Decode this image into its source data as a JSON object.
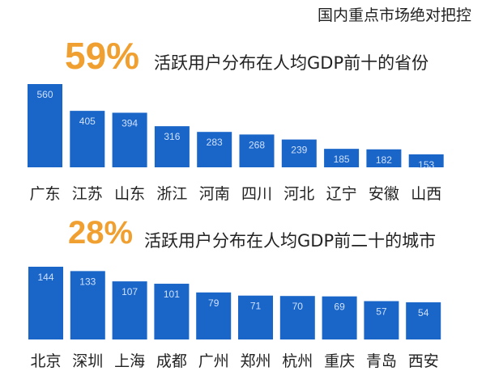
{
  "header": {
    "title": "国内重点市场绝对把控"
  },
  "chart_data": [
    {
      "type": "bar",
      "highlight": "59%",
      "title": "活跃用户分布在人均GDP前十的省份",
      "categories": [
        "广东",
        "江苏",
        "山东",
        "浙江",
        "河南",
        "四川",
        "河北",
        "辽宁",
        "安徽",
        "山西"
      ],
      "values": [
        560,
        405,
        394,
        316,
        283,
        268,
        239,
        185,
        182,
        153
      ],
      "ylim": [
        78,
        560
      ],
      "grid": false,
      "bar_color": "#1a66c8",
      "highlight_color": "#f0a030"
    },
    {
      "type": "bar",
      "highlight": "28%",
      "title": "活跃用户分布在人均GDP前二十的城市",
      "categories": [
        "北京",
        "深圳",
        "上海",
        "成都",
        "广州",
        "郑州",
        "杭州",
        "重庆",
        "青岛",
        "西安"
      ],
      "values": [
        144,
        133,
        107,
        101,
        79,
        71,
        70,
        69,
        57,
        54
      ],
      "ylim": [
        -40,
        144
      ],
      "grid": false,
      "bar_color": "#1a66c8",
      "highlight_color": "#f0a030"
    }
  ]
}
